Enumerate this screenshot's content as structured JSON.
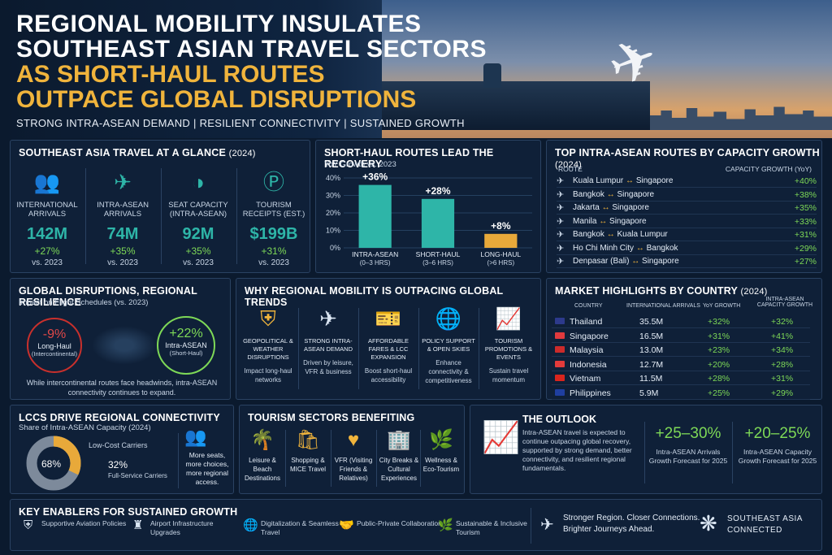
{
  "hero": {
    "title_white": [
      "REGIONAL MOBILITY INSULATES",
      "SOUTHEAST ASIAN TRAVEL SECTORS"
    ],
    "title_gold": [
      "AS SHORT-HAUL ROUTES",
      "OUTPACE GLOBAL DISRUPTIONS"
    ],
    "subtitle": "STRONG INTRA-ASEAN DEMAND  |  RESILIENT CONNECTIVITY  |  SUSTAINED GROWTH"
  },
  "glance": {
    "title": "SOUTHEAST ASIA TRAVEL AT A GLANCE",
    "year": "(2024)",
    "stats": [
      {
        "icon": "people-icon",
        "label": "INTERNATIONAL ARRIVALS",
        "value": "142M",
        "growth": "+27%",
        "vs": "vs. 2023"
      },
      {
        "icon": "airplane-icon",
        "label": "INTRA-ASEAN ARRIVALS",
        "value": "74M",
        "growth": "+35%",
        "vs": "vs. 2023"
      },
      {
        "icon": "seat-icon",
        "label": "SEAT CAPACITY (INTRA-ASEAN)",
        "value": "92M",
        "growth": "+35%",
        "vs": "vs. 2023"
      },
      {
        "icon": "dollar-icon",
        "label": "TOURISM RECEIPTS (EST.)",
        "value": "$199B",
        "growth": "+31%",
        "vs": "vs. 2023"
      }
    ]
  },
  "shorthaul": {
    "title": "SHORT-HAUL ROUTES LEAD THE RECOVERY",
    "subtitle": "YoY Growth vs. 2023"
  },
  "chart_data": {
    "type": "bar",
    "title": "SHORT-HAUL ROUTES LEAD THE RECOVERY",
    "subtitle": "YoY Growth vs. 2023",
    "categories": [
      "INTRA-ASEAN (0–3 HRS)",
      "SHORT-HAUL (3–6 HRS)",
      "LONG-HAUL (>6 HRS)"
    ],
    "cat_line1": [
      "INTRA-ASEAN",
      "SHORT-HAUL",
      "LONG-HAUL"
    ],
    "cat_line2": [
      "(0–3 HRS)",
      "(3–6 HRS)",
      "(>6 HRS)"
    ],
    "values": [
      36,
      28,
      8
    ],
    "data_labels": [
      "+36%",
      "+28%",
      "+8%"
    ],
    "colors": [
      "#2eb5a8",
      "#2eb5a8",
      "#e8a93a"
    ],
    "ylim": [
      0,
      40
    ],
    "yticks": [
      "0%",
      "10%",
      "20%",
      "30%",
      "40%"
    ],
    "grid": true
  },
  "routes": {
    "title": "TOP INTRA-ASEAN ROUTES BY CAPACITY GROWTH",
    "year": "(2024)",
    "col_route": "ROUTE",
    "col_growth": "CAPACITY GROWTH (YoY)",
    "rows": [
      {
        "from": "Kuala Lumpur",
        "to": "Singapore",
        "growth": "+40%"
      },
      {
        "from": "Bangkok",
        "to": "Singapore",
        "growth": "+38%"
      },
      {
        "from": "Jakarta",
        "to": "Singapore",
        "growth": "+35%"
      },
      {
        "from": "Manila",
        "to": "Singapore",
        "growth": "+33%"
      },
      {
        "from": "Bangkok",
        "to": "Kuala Lumpur",
        "growth": "+31%"
      },
      {
        "from": "Ho Chi Minh City",
        "to": "Bangkok",
        "growth": "+29%"
      },
      {
        "from": "Denpasar (Bali)",
        "to": "Singapore",
        "growth": "+27%"
      }
    ],
    "arrow": "↔"
  },
  "disruptions": {
    "title": "GLOBAL DISRUPTIONS, REGIONAL RESILIENCE",
    "subtitle": "Impact on Flight Schedules (vs. 2023)",
    "left_value": "-9%",
    "left_label": "Long-Haul",
    "left_sub": "(Intercontinental)",
    "right_value": "+22%",
    "right_label": "Intra-ASEAN",
    "right_sub": "(Short-Haul)",
    "note": "While intercontinental routes face headwinds, intra-ASEAN connectivity continues to expand.",
    "left_pct": 9,
    "right_pct": 22
  },
  "why": {
    "title": "WHY REGIONAL MOBILITY IS  OUTPACING GLOBAL TRENDS",
    "items": [
      {
        "icon": "shield-icon",
        "title": "GEOPOLITICAL & WEATHER DISRUPTIONS",
        "desc": "Impact long-haul networks"
      },
      {
        "icon": "plane-icon",
        "title": "STRONG INTRA-ASEAN DEMAND",
        "desc": "Driven by leisure, VFR & business"
      },
      {
        "icon": "ticket-icon",
        "title": "AFFORDABLE FARES & LCC EXPANSION",
        "desc": "Boost short-haul accessibility"
      },
      {
        "icon": "globe-icon",
        "title": "POLICY SUPPORT & OPEN SKIES",
        "desc": "Enhance connectivity & competitiveness"
      },
      {
        "icon": "trend-up-icon",
        "title": "TOURISM PROMOTIONS & EVENTS",
        "desc": "Sustain travel momentum"
      }
    ]
  },
  "market": {
    "title": "MARKET HIGHLIGHTS BY COUNTRY",
    "year": "(2024)",
    "col_country": "COUNTRY",
    "col_arrivals": "INTERNATIONAL ARRIVALS",
    "col_yoy": "YoY GROWTH",
    "col_cap": "INTRA-ASEAN CAPACITY GROWTH",
    "rows": [
      {
        "country": "Thailand",
        "arrivals": "35.5M",
        "yoy": "+32%",
        "cap": "+32%",
        "flag": "#2d3a8c"
      },
      {
        "country": "Singapore",
        "arrivals": "16.5M",
        "yoy": "+31%",
        "cap": "+41%",
        "flag": "#e03a3e"
      },
      {
        "country": "Malaysia",
        "arrivals": "13.0M",
        "yoy": "+23%",
        "cap": "+34%",
        "flag": "#cc2b2b"
      },
      {
        "country": "Indonesia",
        "arrivals": "12.7M",
        "yoy": "+20%",
        "cap": "+28%",
        "flag": "#e23b3b"
      },
      {
        "country": "Vietnam",
        "arrivals": "11.5M",
        "yoy": "+28%",
        "cap": "+31%",
        "flag": "#da251d"
      },
      {
        "country": "Philippines",
        "arrivals": "5.9M",
        "yoy": "+25%",
        "cap": "+29%",
        "flag": "#1f3fa0"
      }
    ]
  },
  "lcc": {
    "title": "LCCs DRIVE REGIONAL CONNECTIVITY",
    "subtitle": "Share of Intra-ASEAN Capacity (2024)",
    "lcc_label": "Low-Cost Carriers",
    "lcc_pct": 68,
    "lcc_pct_text": "68%",
    "fsc_pct_text": "32%",
    "fsc_label": "Full-Service Carriers",
    "note": "More seats, more choices, more regional access."
  },
  "sectors": {
    "title": "TOURISM SECTORS BENEFITING",
    "items": [
      {
        "icon": "palm-icon",
        "label": "Leisure & Beach Destinations"
      },
      {
        "icon": "shopping-bag-icon",
        "label": "Shopping & MICE Travel"
      },
      {
        "icon": "heart-icon",
        "label": "VFR (Visiting Friends & Relatives)"
      },
      {
        "icon": "city-icon",
        "label": "City Breaks & Cultural Experiences"
      },
      {
        "icon": "leaf-icon",
        "label": "Wellness & Eco-Tourism"
      }
    ]
  },
  "outlook": {
    "title": "THE OUTLOOK",
    "text": "Intra-ASEAN travel is expected to continue outpacing global recovery, supported by strong demand, better connectivity, and resilient regional fundamentals.",
    "f1_value": "+25–30%",
    "f1_label": "Intra-ASEAN Arrivals Growth Forecast for 2025",
    "f2_value": "+20–25%",
    "f2_label": "Intra-ASEAN Capacity Growth Forecast for 2025"
  },
  "enablers": {
    "title": "KEY ENABLERS FOR SUSTAINED GROWTH",
    "items": [
      {
        "icon": "shield-check-icon",
        "label": "Supportive Aviation Policies"
      },
      {
        "icon": "tower-icon",
        "label": "Airport Infrastructure Upgrades"
      },
      {
        "icon": "digital-globe-icon",
        "label": "Digitalization & Seamless Travel"
      },
      {
        "icon": "handshake-icon",
        "label": "Public-Private Collaboration"
      },
      {
        "icon": "leaf-icon",
        "label": "Sustainable & Inclusive Tourism"
      }
    ],
    "tagline": "Stronger Region. Closer Connections. Brighter Journeys Ahead.",
    "brand1": "SOUTHEAST ASIA",
    "brand2": "CONNECTED"
  }
}
